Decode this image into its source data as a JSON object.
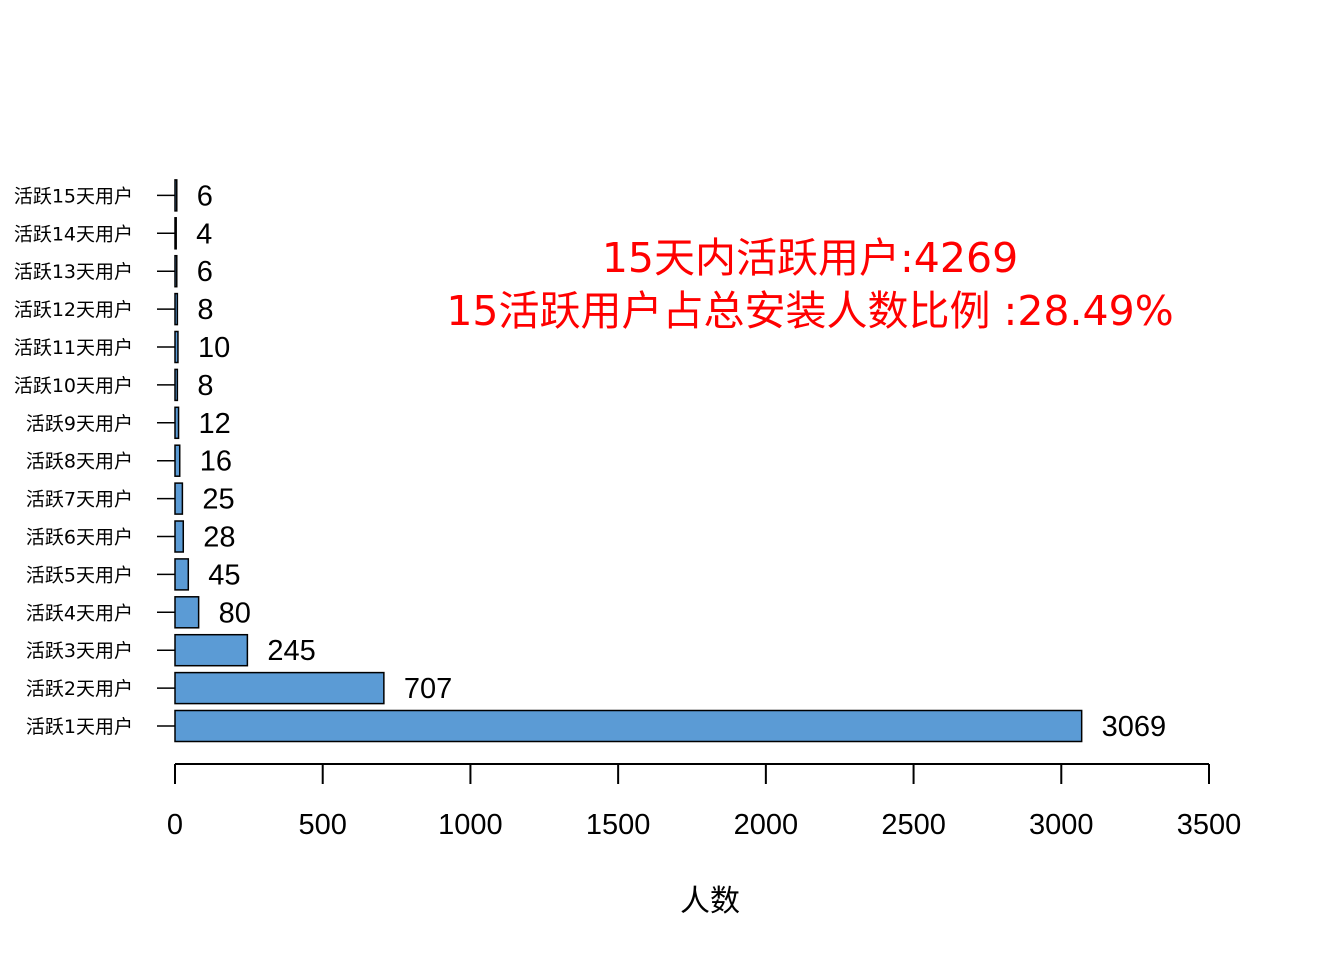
{
  "chart_data": {
    "type": "bar",
    "orientation": "horizontal",
    "categories": [
      "活跃1天用户",
      "活跃2天用户",
      "活跃3天用户",
      "活跃4天用户",
      "活跃5天用户",
      "活跃6天用户",
      "活跃7天用户",
      "活跃8天用户",
      "活跃9天用户",
      "活跃10天用户",
      "活跃11天用户",
      "活跃12天用户",
      "活跃13天用户",
      "活跃14天用户",
      "活跃15天用户"
    ],
    "values": [
      3069,
      707,
      245,
      80,
      45,
      28,
      25,
      16,
      12,
      8,
      10,
      8,
      6,
      4,
      6
    ],
    "data_labels": [
      "3069",
      "707",
      "245",
      "80",
      "45",
      "28",
      "25",
      "16",
      "12",
      "8",
      "10",
      "8",
      "6",
      "4",
      "6"
    ],
    "xlabel": "人数",
    "ylabel": "",
    "xlim": [
      0,
      3500
    ],
    "xticks": [
      "0",
      "500",
      "1000",
      "1500",
      "2000",
      "2500",
      "3000",
      "3500"
    ],
    "grid": false,
    "annotations": [
      "15天内活跃用户:4269",
      "15活跃用户占总安装人数比例 :28.49%"
    ],
    "colors": {
      "bar_fill": "#5b9bd5",
      "bar_stroke": "#000000",
      "annotation": "#ff0000"
    }
  }
}
